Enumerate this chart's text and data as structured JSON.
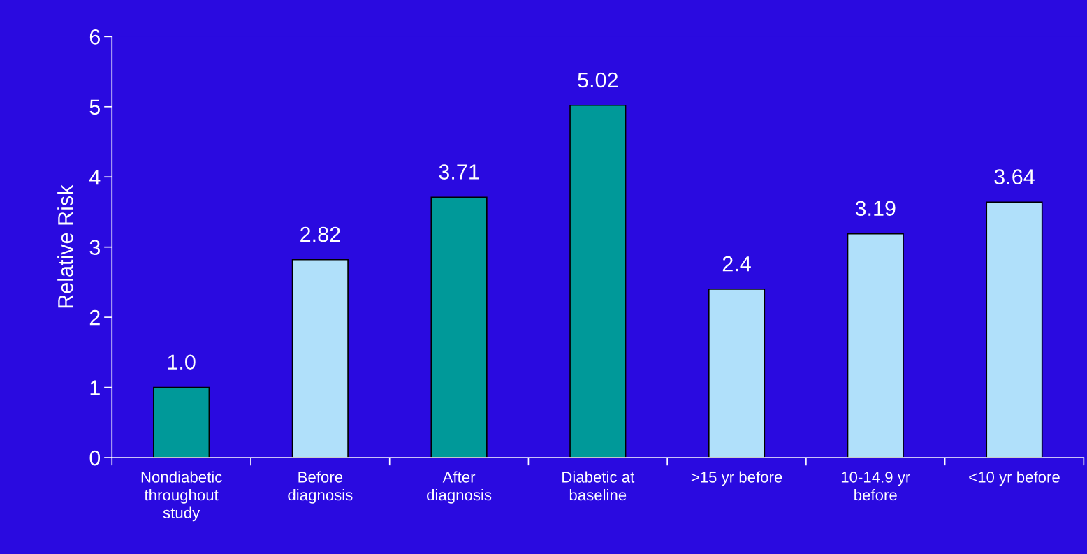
{
  "chart_data": {
    "type": "bar",
    "ylabel": "Relative Risk",
    "categories": [
      "Nondiabetic\nthroughout\nstudy",
      "Before\ndiagnosis",
      "After\ndiagnosis",
      "Diabetic at\nbaseline",
      ">15 yr before",
      "10-14.9 yr\nbefore",
      "<10 yr before"
    ],
    "values": [
      1.0,
      2.82,
      3.71,
      5.02,
      2.4,
      3.19,
      3.64
    ],
    "value_labels": [
      "1.0",
      "2.82",
      "3.71",
      "5.02",
      "2.4",
      "3.19",
      "3.64"
    ],
    "colors": [
      "#009999",
      "#b0e0fa",
      "#009999",
      "#009999",
      "#b0e0fa",
      "#b0e0fa",
      "#b0e0fa"
    ],
    "ylim": [
      0,
      6
    ],
    "yticks": [
      0,
      1,
      2,
      3,
      4,
      5,
      6
    ],
    "grid": false,
    "legend": false
  }
}
